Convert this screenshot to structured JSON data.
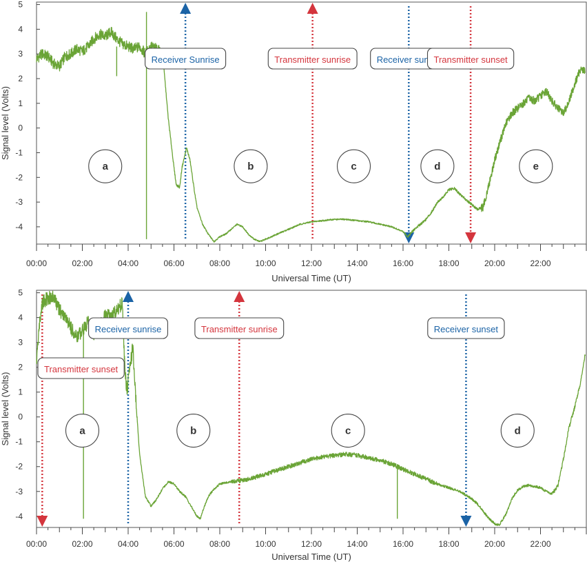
{
  "chart_data": [
    {
      "type": "line",
      "title": "",
      "xlabel": "Universal Time (UT)",
      "ylabel": "Signal level (Volts)",
      "xlim": [
        0,
        24
      ],
      "ylim": [
        -4.7,
        5.1
      ],
      "x_ticks": [
        0,
        2,
        4,
        6,
        8,
        10,
        12,
        14,
        16,
        18,
        20,
        22
      ],
      "x_tick_labels": [
        "00:00",
        "02:00",
        "04:00",
        "06:00",
        "08:00",
        "10:00",
        "12:00",
        "14:00",
        "16:00",
        "18:00",
        "20:00",
        "22:00"
      ],
      "y_ticks": [
        -4,
        -3,
        -2,
        -1,
        0,
        1,
        2,
        3,
        4,
        5
      ],
      "y_tick_labels": [
        "-4",
        "-3",
        "-2",
        "-1",
        "0",
        "1",
        "2",
        "3",
        "4",
        "5"
      ],
      "grid": false,
      "legend": "none",
      "series": [
        {
          "color": "#6aa436",
          "x": [
            0.0,
            0.25,
            0.5,
            0.75,
            1.0,
            1.25,
            1.5,
            1.75,
            2.0,
            2.25,
            2.5,
            2.75,
            3.0,
            3.25,
            3.5,
            3.75,
            4.0,
            4.25,
            4.5,
            4.75,
            5.0,
            5.25,
            5.5,
            5.6,
            5.75,
            5.9,
            6.0,
            6.1,
            6.25,
            6.35,
            6.5,
            6.55,
            6.7,
            6.9,
            7.0,
            7.25,
            7.5,
            7.75,
            8.0,
            8.25,
            8.5,
            8.75,
            9.0,
            9.25,
            9.5,
            9.75,
            10.0,
            10.5,
            11.0,
            11.5,
            12.0,
            12.5,
            13.0,
            13.5,
            14.0,
            14.5,
            15.0,
            15.5,
            16.0,
            16.2,
            16.5,
            17.0,
            17.25,
            17.5,
            17.75,
            18.0,
            18.25,
            18.5,
            18.75,
            19.0,
            19.25,
            19.5,
            19.75,
            20.0,
            20.25,
            20.5,
            20.75,
            21.0,
            21.25,
            21.5,
            21.75,
            22.0,
            22.25,
            22.5,
            22.75,
            23.0,
            23.25,
            23.5,
            23.75,
            23.95
          ],
          "y": [
            2.8,
            3.0,
            2.9,
            2.6,
            2.5,
            2.9,
            3.0,
            3.2,
            3.1,
            3.3,
            3.6,
            3.8,
            3.7,
            3.9,
            3.6,
            3.4,
            3.3,
            3.2,
            3.3,
            3.0,
            3.3,
            3.2,
            3.0,
            2.0,
            0.4,
            -0.8,
            -1.6,
            -2.3,
            -2.4,
            -1.6,
            -1.0,
            -0.8,
            -1.3,
            -2.6,
            -3.2,
            -3.9,
            -4.3,
            -4.6,
            -4.4,
            -4.3,
            -4.1,
            -3.9,
            -4.0,
            -4.3,
            -4.5,
            -4.6,
            -4.5,
            -4.3,
            -4.1,
            -3.9,
            -3.8,
            -3.75,
            -3.7,
            -3.7,
            -3.75,
            -3.8,
            -3.9,
            -4.0,
            -4.2,
            -4.4,
            -4.1,
            -3.7,
            -3.4,
            -3.0,
            -2.8,
            -2.5,
            -2.45,
            -2.7,
            -2.9,
            -3.1,
            -3.3,
            -3.2,
            -2.3,
            -1.3,
            -0.5,
            0.2,
            0.6,
            0.8,
            1.0,
            1.2,
            1.1,
            1.3,
            1.5,
            1.1,
            0.8,
            0.6,
            1.1,
            1.8,
            2.4,
            2.3
          ]
        }
      ],
      "spikes": [
        {
          "x": 3.5,
          "y_from": 3.3,
          "y_to": 2.1
        },
        {
          "x": 4.8,
          "y_from": 3.0,
          "y_to": -4.5
        },
        {
          "x": 4.8,
          "y_from": 3.0,
          "y_to": 4.7
        }
      ],
      "markers": [
        {
          "label": "Receiver Sunrise",
          "x": 6.5,
          "color": "#1b63a6",
          "arrow": "up"
        },
        {
          "label": "Transmitter sunrise",
          "x": 12.05,
          "color": "#d4353d",
          "arrow": "up"
        },
        {
          "label": "Receiver sunset",
          "x": 16.25,
          "color": "#1b63a6",
          "arrow": "down"
        },
        {
          "label": "Transmitter sunset",
          "x": 18.95,
          "color": "#d4353d",
          "arrow": "down"
        }
      ],
      "annotations": [
        {
          "text": "a",
          "x": 3.0,
          "y": -1.55
        },
        {
          "text": "b",
          "x": 9.35,
          "y": -1.55
        },
        {
          "text": "c",
          "x": 13.85,
          "y": -1.55
        },
        {
          "text": "d",
          "x": 17.5,
          "y": -1.55
        },
        {
          "text": "e",
          "x": 21.8,
          "y": -1.55
        }
      ]
    },
    {
      "type": "line",
      "title": "",
      "xlabel": "Universal Time (UT)",
      "ylabel": "Signal level (Volts)",
      "xlim": [
        0,
        24
      ],
      "ylim": [
        -4.45,
        5.1
      ],
      "x_ticks": [
        0,
        2,
        4,
        6,
        8,
        10,
        12,
        14,
        16,
        18,
        20,
        22
      ],
      "x_tick_labels": [
        "00:00",
        "02:00",
        "04:00",
        "06:00",
        "08:00",
        "10:00",
        "12:00",
        "14:00",
        "16:00",
        "18:00",
        "20:00",
        "22:00"
      ],
      "y_ticks": [
        -4,
        -3,
        -2,
        -1,
        0,
        1,
        2,
        3,
        4,
        5
      ],
      "y_tick_labels": [
        "-4",
        "-3",
        "-2",
        "-1",
        "0",
        "1",
        "2",
        "3",
        "4",
        "5"
      ],
      "grid": false,
      "legend": "none",
      "series": [
        {
          "color": "#6aa436",
          "x": [
            0.0,
            0.1,
            0.25,
            0.5,
            0.75,
            1.0,
            1.25,
            1.5,
            1.75,
            2.0,
            2.25,
            2.5,
            2.75,
            3.0,
            3.25,
            3.5,
            3.75,
            3.85,
            3.95,
            4.05,
            4.2,
            4.35,
            4.5,
            4.75,
            5.0,
            5.25,
            5.5,
            5.75,
            6.0,
            6.25,
            6.5,
            6.75,
            7.0,
            7.15,
            7.25,
            7.5,
            7.75,
            8.0,
            8.5,
            9.0,
            9.5,
            10.0,
            10.5,
            11.0,
            11.5,
            12.0,
            12.5,
            13.0,
            13.5,
            14.0,
            14.5,
            15.0,
            15.5,
            16.0,
            16.5,
            17.0,
            17.5,
            18.0,
            18.5,
            19.0,
            19.25,
            19.5,
            19.75,
            20.0,
            20.2,
            20.5,
            20.75,
            21.0,
            21.25,
            21.5,
            21.75,
            22.0,
            22.25,
            22.5,
            22.75,
            23.0,
            23.25,
            23.5,
            23.75,
            23.95
          ],
          "y": [
            2.2,
            3.5,
            4.6,
            4.8,
            4.8,
            4.3,
            4.0,
            3.6,
            3.2,
            3.5,
            3.8,
            3.3,
            3.6,
            4.1,
            4.0,
            4.3,
            4.6,
            2.0,
            1.0,
            1.8,
            2.8,
            0.5,
            -1.5,
            -3.2,
            -3.6,
            -3.3,
            -2.9,
            -2.6,
            -2.7,
            -3.0,
            -3.2,
            -3.6,
            -4.0,
            -4.1,
            -3.8,
            -3.2,
            -2.9,
            -2.7,
            -2.6,
            -2.55,
            -2.45,
            -2.3,
            -2.15,
            -2.0,
            -1.85,
            -1.7,
            -1.6,
            -1.55,
            -1.5,
            -1.55,
            -1.65,
            -1.75,
            -1.9,
            -2.1,
            -2.3,
            -2.5,
            -2.7,
            -2.85,
            -3.0,
            -3.3,
            -3.5,
            -3.8,
            -4.1,
            -4.3,
            -4.35,
            -3.9,
            -3.3,
            -2.95,
            -2.8,
            -2.75,
            -2.8,
            -2.85,
            -3.0,
            -3.1,
            -2.8,
            -1.7,
            -0.4,
            0.4,
            1.4,
            2.5
          ]
        }
      ],
      "spikes": [
        {
          "x": 2.05,
          "y_from": 3.3,
          "y_to": -4.1
        },
        {
          "x": 15.75,
          "y_from": -1.9,
          "y_to": -4.1
        }
      ],
      "markers": [
        {
          "label": "Transmitter sunset",
          "x": 0.25,
          "color": "#d4353d",
          "arrow": "down"
        },
        {
          "label": "Receiver sunrise",
          "x": 4.0,
          "color": "#1b63a6",
          "arrow": "up"
        },
        {
          "label": "Transmitter sunrise",
          "x": 8.85,
          "color": "#d4353d",
          "arrow": "up"
        },
        {
          "label": "Receiver sunset",
          "x": 18.75,
          "color": "#1b63a6",
          "arrow": "down"
        }
      ],
      "annotations": [
        {
          "text": "a",
          "x": 2.0,
          "y": -0.55
        },
        {
          "text": "b",
          "x": 6.85,
          "y": -0.55
        },
        {
          "text": "c",
          "x": 13.6,
          "y": -0.55
        },
        {
          "text": "d",
          "x": 21.0,
          "y": -0.55
        }
      ]
    }
  ]
}
